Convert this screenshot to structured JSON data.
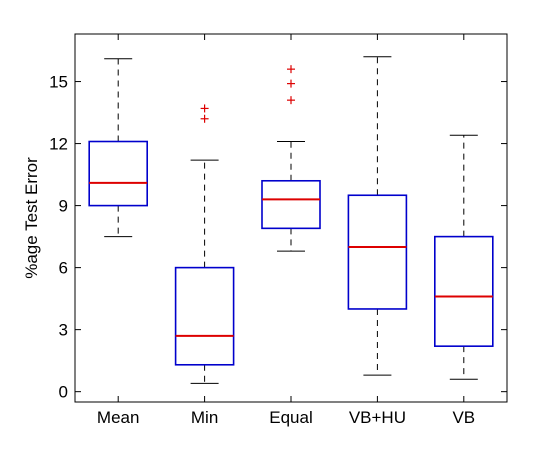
{
  "chart_data": {
    "type": "box",
    "title": "",
    "xlabel": "",
    "ylabel": "%age Test Error",
    "ylim": [
      -0.5,
      17.3
    ],
    "yticks": [
      0,
      3,
      6,
      9,
      12,
      15
    ],
    "grid": false,
    "categories": [
      "Mean",
      "Min",
      "Equal",
      "VB+HU",
      "VB"
    ],
    "boxes": [
      {
        "category": "Mean",
        "whisker_low": 7.5,
        "q1": 9.0,
        "median": 10.1,
        "q3": 12.1,
        "whisker_high": 16.1,
        "outliers": []
      },
      {
        "category": "Min",
        "whisker_low": 0.4,
        "q1": 1.3,
        "median": 2.7,
        "q3": 6.0,
        "whisker_high": 11.2,
        "outliers": [
          13.2,
          13.7
        ]
      },
      {
        "category": "Equal",
        "whisker_low": 6.8,
        "q1": 7.9,
        "median": 9.3,
        "q3": 10.2,
        "whisker_high": 12.1,
        "outliers": [
          14.1,
          14.9,
          15.6
        ]
      },
      {
        "category": "VB+HU",
        "whisker_low": 0.8,
        "q1": 4.0,
        "median": 7.0,
        "q3": 9.5,
        "whisker_high": 16.2,
        "outliers": []
      },
      {
        "category": "VB",
        "whisker_low": 0.6,
        "q1": 2.2,
        "median": 4.6,
        "q3": 7.5,
        "whisker_high": 12.4,
        "outliers": []
      }
    ],
    "colors": {
      "box": "#0000cc",
      "median": "#dd0000",
      "outlier": "#dd0000",
      "whisker": "#000000"
    }
  }
}
